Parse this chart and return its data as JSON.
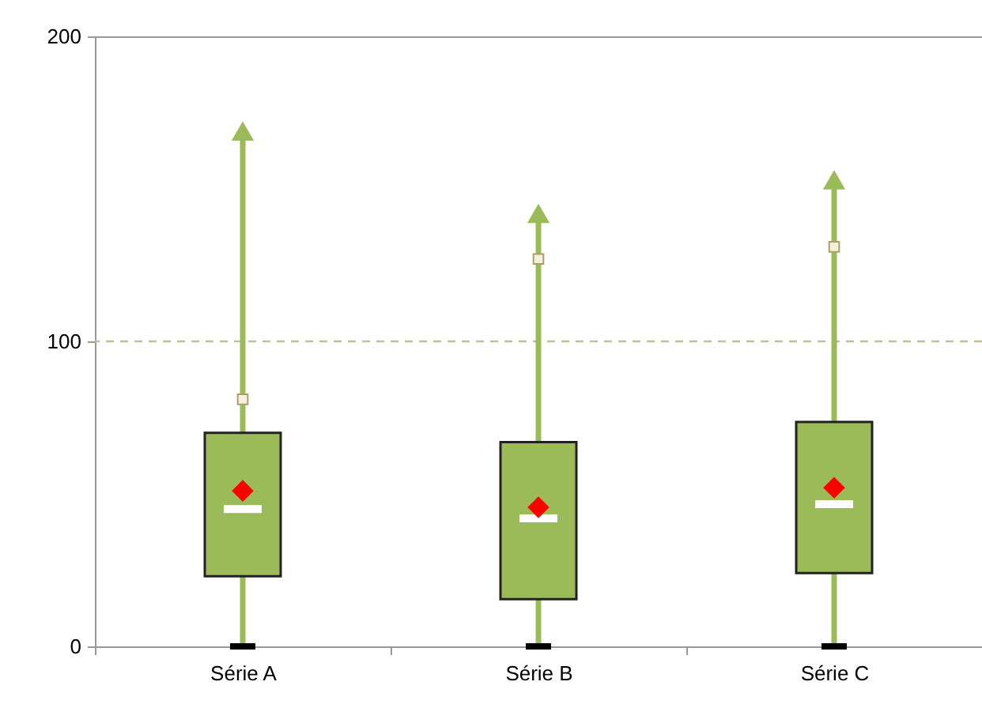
{
  "chart_data": {
    "type": "box",
    "categories": [
      "Série A",
      "Série B",
      "Série C"
    ],
    "series": [
      {
        "color": "#9bbb59",
        "boxes": [
          {
            "low": 0,
            "q1": 23,
            "median": 45,
            "q3": 70,
            "high": 169,
            "mean": 51
          },
          {
            "low": 0,
            "q1": 15.5,
            "median": 42,
            "q3": 67,
            "high": 142,
            "mean": 45.6
          },
          {
            "low": 0,
            "q1": 24,
            "median": 46.6,
            "q3": 73.6,
            "high": 153,
            "mean": 52
          }
        ]
      },
      {
        "type": "scatter",
        "x": [
          "Série A",
          "Série B",
          "Série C"
        ],
        "values": [
          169,
          142,
          153
        ],
        "color": "#9bbb59",
        "marker": "triangle"
      },
      {
        "type": "scatter",
        "x": [
          "Série A",
          "Série B",
          "Série C"
        ],
        "values": [
          81,
          127,
          131
        ],
        "color": "#f5f0dc",
        "marker": "square"
      }
    ],
    "ylim": [
      0,
      200
    ],
    "yticks": [
      0,
      100,
      200
    ],
    "grid": false,
    "ref_lines": [
      {
        "axis": "y",
        "value": 100,
        "color": "#c4bd97",
        "line_style": "dashed"
      }
    ]
  }
}
